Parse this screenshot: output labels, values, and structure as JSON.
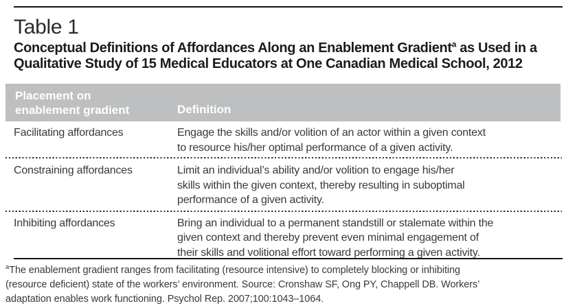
{
  "page": {
    "label": "Table 1"
  },
  "title": {
    "line1_pre": "Conceptual Definitions of Affordances Along an Enablement Gradient",
    "superscript": "a",
    "line1_post": " as Used in a",
    "line2": "Qualitative Study of 15 Medical Educators at One Canadian Medical School, 2012"
  },
  "table": {
    "header": {
      "col1_line1": "Placement on",
      "col1_line2": "enablement gradient",
      "col2": "Definition"
    },
    "rows": [
      {
        "placement": "Facilitating affordances",
        "definition_lines": [
          "Engage the skills and/or volition of an actor within a given context",
          "to resource his/her optimal performance of a given activity."
        ]
      },
      {
        "placement": "Constraining affordances",
        "definition_lines": [
          "Limit an individual’s ability and/or volition to engage his/her",
          "skills within the given context, thereby resulting in suboptimal",
          "performance of a given activity."
        ]
      },
      {
        "placement": "Inhibiting affordances",
        "definition_lines": [
          "Bring an individual to a permanent standstill or stalemate within the",
          "given context and thereby prevent even minimal engagement of",
          "their skills and volitional effort toward performing a given activity."
        ]
      }
    ]
  },
  "footnote": {
    "superscript": "a",
    "line1": "The enablement gradient ranges from facilitating (resource intensive) to completely blocking or inhibiting",
    "line2": "(resource deficient) state of the workers’ environment. Source: Cronshaw SF, Ong PY, Chappell DB. Workers’",
    "line3": "adaptation enables work functioning. Psychol Rep. 2007;100:1043–1064."
  },
  "colors": {
    "header_bg": "#bdbfc1",
    "header_text": "#ffffff",
    "body_text": "#38383a",
    "title_text": "#1b1b1d",
    "rule": "#131313"
  }
}
